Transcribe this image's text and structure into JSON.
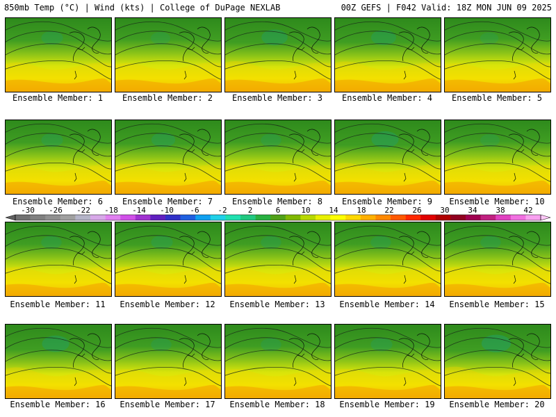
{
  "header": {
    "left": "850mb Temp (°C) | Wind (kts) | College of DuPage NEXLAB",
    "right": "00Z GEFS | F042 Valid: 18Z MON JUN 09 2025"
  },
  "members": [
    {
      "label": "Ensemble Member: 1",
      "cold_core": 0.35
    },
    {
      "label": "Ensemble Member: 2",
      "cold_core": 0.25
    },
    {
      "label": "Ensemble Member: 3",
      "cold_core": 0.55
    },
    {
      "label": "Ensemble Member: 4",
      "cold_core": 0.5
    },
    {
      "label": "Ensemble Member: 5",
      "cold_core": 0.2
    },
    {
      "label": "Ensemble Member: 6",
      "cold_core": 0.35
    },
    {
      "label": "Ensemble Member: 7",
      "cold_core": 0.45
    },
    {
      "label": "Ensemble Member: 8",
      "cold_core": 0.3
    },
    {
      "label": "Ensemble Member: 9",
      "cold_core": 0.6
    },
    {
      "label": "Ensemble Member: 10",
      "cold_core": 0.25
    },
    {
      "label": "Ensemble Member: 11",
      "cold_core": 0.3
    },
    {
      "label": "Ensemble Member: 12",
      "cold_core": 0.35
    },
    {
      "label": "Ensemble Member: 13",
      "cold_core": 0.3
    },
    {
      "label": "Ensemble Member: 14",
      "cold_core": 0.3
    },
    {
      "label": "Ensemble Member: 15",
      "cold_core": 0.3
    },
    {
      "label": "Ensemble Member: 16",
      "cold_core": 0.6
    },
    {
      "label": "Ensemble Member: 17",
      "cold_core": 0.3
    },
    {
      "label": "Ensemble Member: 18",
      "cold_core": 0.3
    },
    {
      "label": "Ensemble Member: 19",
      "cold_core": 0.35
    },
    {
      "label": "Ensemble Member: 20",
      "cold_core": 0.7
    }
  ],
  "colorbar": {
    "labels": [
      "-30",
      "-26",
      "-22",
      "-18",
      "-14",
      "-10",
      "-6",
      "-2",
      "2",
      "6",
      "10",
      "14",
      "18",
      "22",
      "26",
      "30",
      "34",
      "38",
      "42"
    ],
    "colors": [
      "#707070",
      "#808080",
      "#909090",
      "#a0a0a0",
      "#b4b4c8",
      "#d7a8e8",
      "#e080f0",
      "#d050e8",
      "#a030d0",
      "#6020c0",
      "#3030c8",
      "#2060e0",
      "#10a0f0",
      "#20d0e8",
      "#20e0b0",
      "#20c880",
      "#28b040",
      "#50a018",
      "#80b800",
      "#b8d800",
      "#e8f000",
      "#ffff00",
      "#ffd800",
      "#ffb000",
      "#ff8800",
      "#ff5800",
      "#ff2800",
      "#e00000",
      "#b00000",
      "#900020",
      "#a00050",
      "#c02080",
      "#e040c0",
      "#f070e0",
      "#f8a0f0"
    ]
  }
}
